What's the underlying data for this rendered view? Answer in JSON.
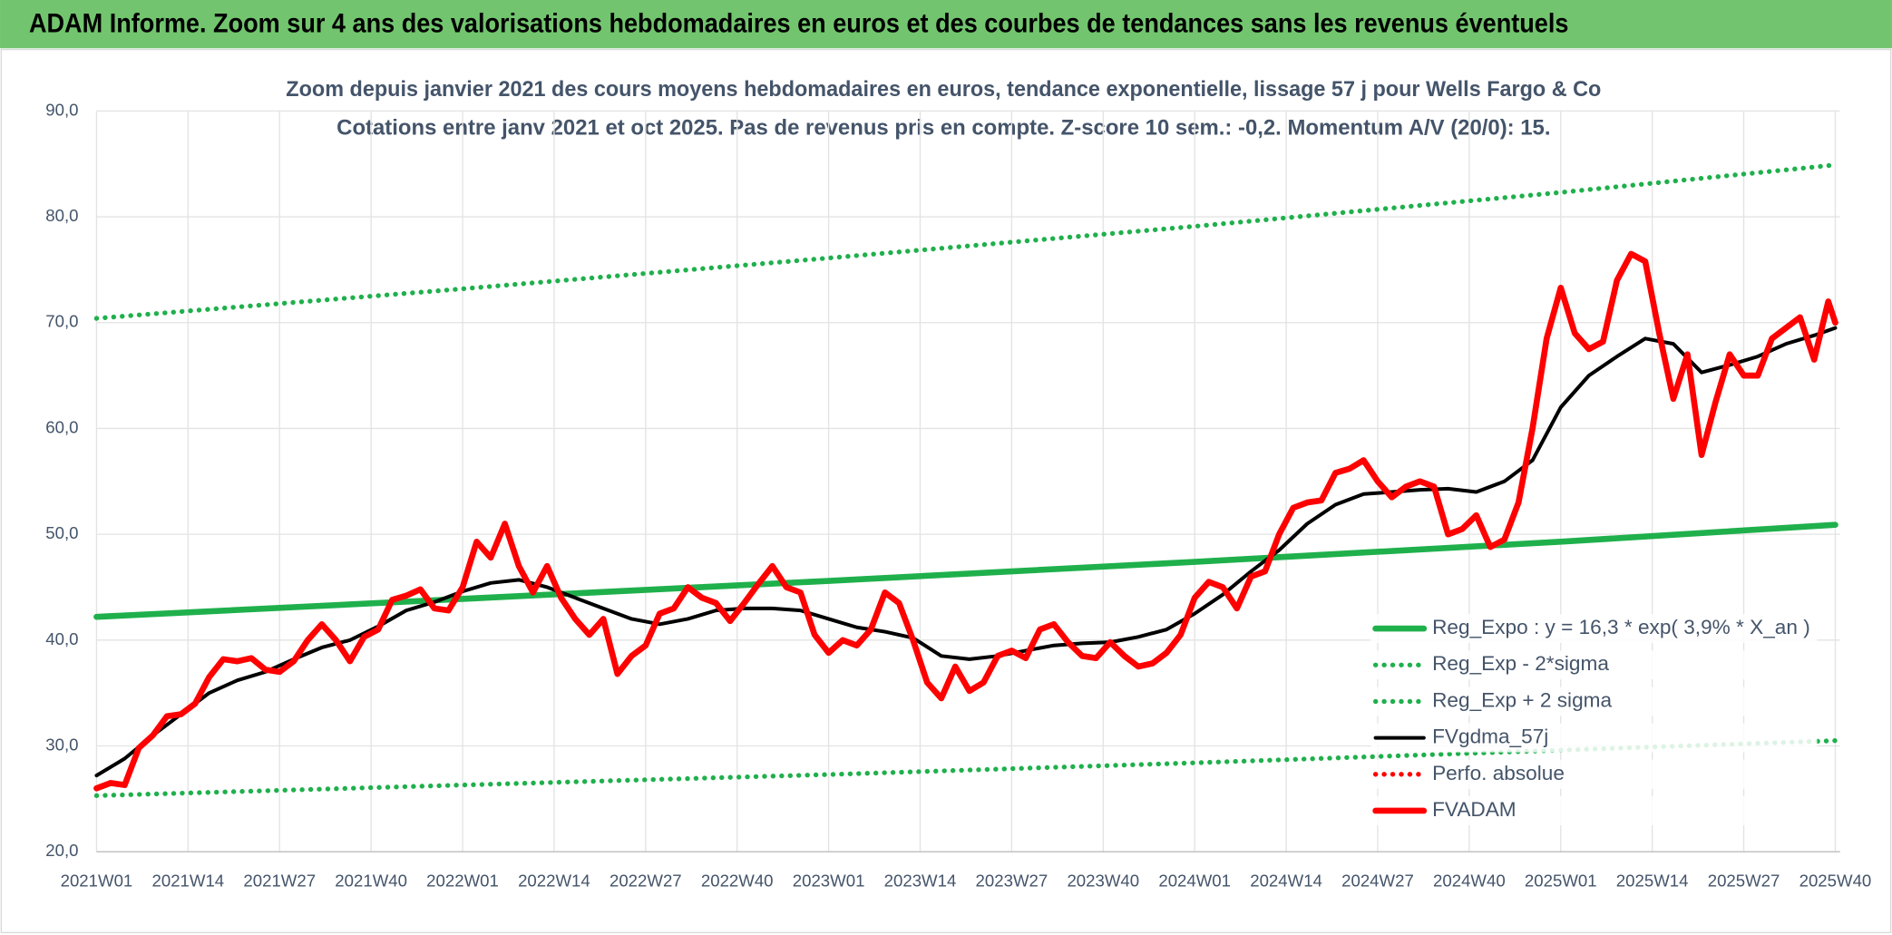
{
  "chart_data": {
    "type": "line",
    "title": "ADAM Informe. Zoom sur 4 ans des valorisations hebdomadaires en euros et des courbes de tendances sans les revenus éventuels",
    "subtitle": [
      "Zoom depuis janvier 2021 des cours moyens hebdomadaires en euros, tendance exponentielle, lissage 57 j pour Wells Fargo & Co",
      "Cotations entre janv 2021 et oct 2025. Pas de revenus pris en compte. Z-score 10 sem.: -0,2. Momentum A/V (20/0): 15."
    ],
    "xlim": [
      0,
      247
    ],
    "xticks": [
      {
        "value": 0,
        "label": "2021W01"
      },
      {
        "value": 13,
        "label": "2021W14"
      },
      {
        "value": 26,
        "label": "2021W27"
      },
      {
        "value": 39,
        "label": "2021W40"
      },
      {
        "value": 52,
        "label": "2022W01"
      },
      {
        "value": 65,
        "label": "2022W14"
      },
      {
        "value": 78,
        "label": "2022W27"
      },
      {
        "value": 91,
        "label": "2022W40"
      },
      {
        "value": 104,
        "label": "2023W01"
      },
      {
        "value": 117,
        "label": "2023W14"
      },
      {
        "value": 130,
        "label": "2023W27"
      },
      {
        "value": 143,
        "label": "2023W40"
      },
      {
        "value": 156,
        "label": "2024W01"
      },
      {
        "value": 169,
        "label": "2024W14"
      },
      {
        "value": 182,
        "label": "2024W27"
      },
      {
        "value": 195,
        "label": "2024W40"
      },
      {
        "value": 208,
        "label": "2025W01"
      },
      {
        "value": 221,
        "label": "2025W14"
      },
      {
        "value": 234,
        "label": "2025W27"
      },
      {
        "value": 247,
        "label": "2025W40"
      }
    ],
    "ylim": [
      20,
      90
    ],
    "yticks": [
      {
        "value": 20,
        "label": "20,0"
      },
      {
        "value": 30,
        "label": "30,0"
      },
      {
        "value": 40,
        "label": "40,0"
      },
      {
        "value": 50,
        "label": "50,0"
      },
      {
        "value": 60,
        "label": "60,0"
      },
      {
        "value": 70,
        "label": "70,0"
      },
      {
        "value": 80,
        "label": "80,0"
      },
      {
        "value": 90,
        "label": "90,0"
      }
    ],
    "grid": true,
    "legend": "lower right",
    "series": [
      {
        "name": "Reg_Expo : y = 16,3 * exp( 3,9% *  X_an )",
        "color": "#1fb04c",
        "style": "solid",
        "x": [
          0,
          52,
          104,
          156,
          208,
          247
        ],
        "values": [
          42.2,
          43.9,
          45.6,
          47.4,
          49.3,
          50.9
        ]
      },
      {
        "name": "Reg_Exp - 2*sigma",
        "color": "#1fb04c",
        "style": "dotted",
        "x": [
          0,
          52,
          104,
          156,
          208,
          247
        ],
        "values": [
          25.3,
          26.3,
          27.3,
          28.4,
          29.6,
          30.5
        ]
      },
      {
        "name": "Reg_Exp + 2 sigma",
        "color": "#1fb04c",
        "style": "dotted",
        "x": [
          0,
          52,
          104,
          156,
          208,
          247
        ],
        "values": [
          70.4,
          73.2,
          76.1,
          79.1,
          82.3,
          84.9
        ]
      },
      {
        "name": "FVgdma_57j",
        "color": "#000000",
        "style": "solid",
        "x": [
          0,
          4,
          8,
          12,
          16,
          20,
          24,
          28,
          32,
          36,
          40,
          44,
          48,
          52,
          56,
          60,
          64,
          68,
          72,
          76,
          80,
          84,
          88,
          92,
          96,
          100,
          104,
          108,
          112,
          116,
          120,
          124,
          128,
          132,
          136,
          140,
          144,
          148,
          152,
          156,
          160,
          164,
          168,
          172,
          176,
          180,
          184,
          188,
          192,
          196,
          200,
          204,
          208,
          212,
          216,
          220,
          224,
          228,
          232,
          236,
          240,
          244,
          247
        ],
        "values": [
          27.2,
          28.8,
          31.0,
          33.0,
          35.0,
          36.2,
          37.0,
          38.2,
          39.3,
          40.0,
          41.3,
          42.8,
          43.6,
          44.6,
          45.4,
          45.7,
          45.0,
          44.0,
          43.0,
          42.0,
          41.5,
          42.0,
          42.8,
          43.0,
          43.0,
          42.8,
          42.0,
          41.2,
          40.8,
          40.2,
          38.5,
          38.2,
          38.5,
          39.0,
          39.5,
          39.7,
          39.8,
          40.3,
          41.0,
          42.5,
          44.3,
          46.5,
          48.5,
          51.0,
          52.8,
          53.8,
          54.0,
          54.2,
          54.3,
          54.0,
          55.0,
          57.0,
          62.0,
          65.0,
          66.8,
          68.5,
          68.0,
          65.3,
          66.0,
          66.8,
          68.0,
          68.8,
          69.5
        ]
      },
      {
        "name": "Perfo. absolue",
        "color": "#ff0000",
        "style": "dotted",
        "x": [],
        "values": []
      },
      {
        "name": "FVADAM",
        "color": "#ff0000",
        "style": "solid",
        "x": [
          0,
          2,
          4,
          6,
          8,
          10,
          12,
          14,
          16,
          18,
          20,
          22,
          24,
          26,
          28,
          30,
          32,
          34,
          36,
          38,
          40,
          42,
          44,
          46,
          48,
          50,
          52,
          54,
          56,
          58,
          60,
          62,
          64,
          66,
          68,
          70,
          72,
          74,
          76,
          78,
          80,
          82,
          84,
          86,
          88,
          90,
          92,
          94,
          96,
          98,
          100,
          102,
          104,
          106,
          108,
          110,
          112,
          114,
          116,
          118,
          120,
          122,
          124,
          126,
          128,
          130,
          132,
          134,
          136,
          138,
          140,
          142,
          144,
          146,
          148,
          150,
          152,
          154,
          156,
          158,
          160,
          162,
          164,
          166,
          168,
          170,
          172,
          174,
          176,
          178,
          180,
          182,
          184,
          186,
          188,
          190,
          192,
          194,
          196,
          198,
          200,
          202,
          204,
          206,
          208,
          210,
          212,
          214,
          216,
          218,
          220,
          222,
          224,
          226,
          228,
          230,
          232,
          234,
          236,
          238,
          240,
          242,
          244,
          246,
          247
        ],
        "values": [
          26.0,
          26.5,
          26.3,
          29.8,
          31.0,
          32.8,
          33.0,
          34.0,
          36.5,
          38.2,
          38.0,
          38.3,
          37.2,
          37.0,
          38.0,
          40.0,
          41.5,
          40.0,
          38.0,
          40.3,
          41.0,
          43.8,
          44.2,
          44.8,
          43.0,
          42.8,
          45.0,
          49.3,
          47.8,
          51.0,
          47.0,
          44.5,
          47.0,
          44.0,
          42.0,
          40.5,
          42.0,
          36.8,
          38.5,
          39.5,
          42.5,
          43.0,
          45.0,
          44.0,
          43.5,
          41.8,
          43.5,
          45.3,
          47.0,
          45.0,
          44.5,
          40.5,
          38.8,
          40.0,
          39.5,
          41.0,
          44.5,
          43.5,
          40.0,
          36.0,
          34.5,
          37.5,
          35.2,
          36.0,
          38.5,
          39.0,
          38.3,
          41.0,
          41.5,
          39.8,
          38.5,
          38.3,
          39.8,
          38.5,
          37.5,
          37.8,
          38.8,
          40.5,
          44.0,
          45.5,
          45.0,
          43.0,
          46.0,
          46.5,
          50.0,
          52.5,
          53.0,
          53.2,
          55.8,
          56.2,
          57.0,
          55.0,
          53.5,
          54.5,
          55.0,
          54.5,
          50.0,
          50.5,
          51.8,
          48.8,
          49.5,
          53.0,
          60.0,
          68.5,
          73.3,
          69.0,
          67.5,
          68.2,
          74.0,
          76.5,
          75.8,
          69.0,
          62.8,
          67.0,
          57.5,
          62.5,
          67.0,
          65.0,
          65.0,
          68.5,
          69.5,
          70.5,
          66.5,
          72.0,
          70.0
        ]
      }
    ]
  }
}
